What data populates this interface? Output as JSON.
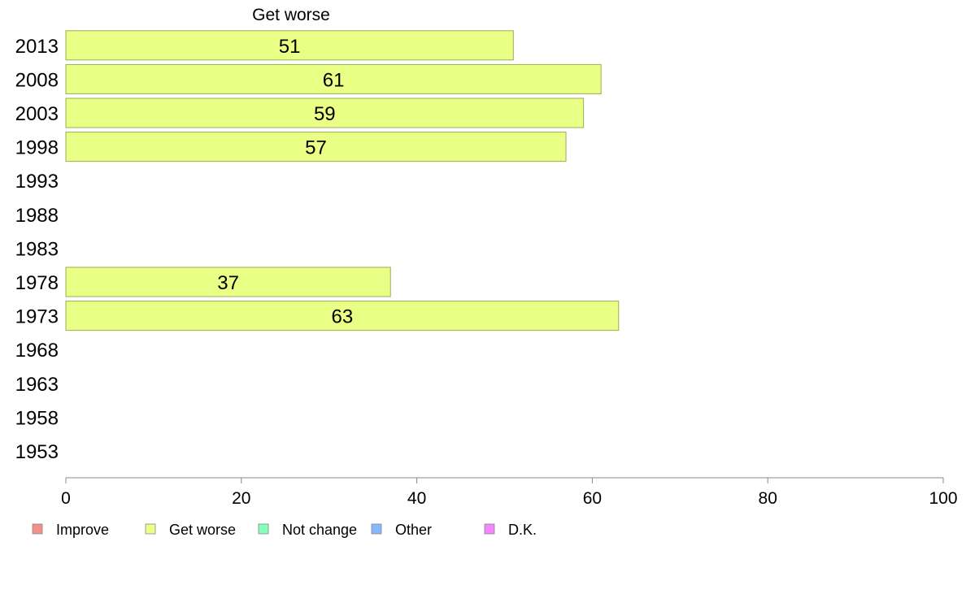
{
  "chart_data": {
    "type": "bar",
    "orientation": "horizontal",
    "title": "Get worse",
    "categories": [
      "2013",
      "2008",
      "2003",
      "1998",
      "1993",
      "1988",
      "1983",
      "1978",
      "1973",
      "1968",
      "1963",
      "1958",
      "1953"
    ],
    "series": [
      {
        "name": "Get worse",
        "values": [
          51,
          61,
          59,
          57,
          null,
          null,
          null,
          37,
          63,
          null,
          null,
          null,
          null
        ]
      }
    ],
    "xlim": [
      0,
      100
    ],
    "xticks": [
      "0",
      "20",
      "40",
      "60",
      "80",
      "100"
    ],
    "grid": false,
    "legend": {
      "placement": "bottom",
      "entries": [
        {
          "label": "Improve",
          "color": "#f4908a"
        },
        {
          "label": "Get worse",
          "color": "#eaff86"
        },
        {
          "label": "Not change",
          "color": "#86ffb8"
        },
        {
          "label": "Other",
          "color": "#86b8ff"
        },
        {
          "label": "D.K.",
          "color": "#f486ff"
        }
      ]
    },
    "colors": {
      "bar": "#eaff86",
      "bar_border": "#9aae55",
      "axis": "#888888"
    }
  }
}
